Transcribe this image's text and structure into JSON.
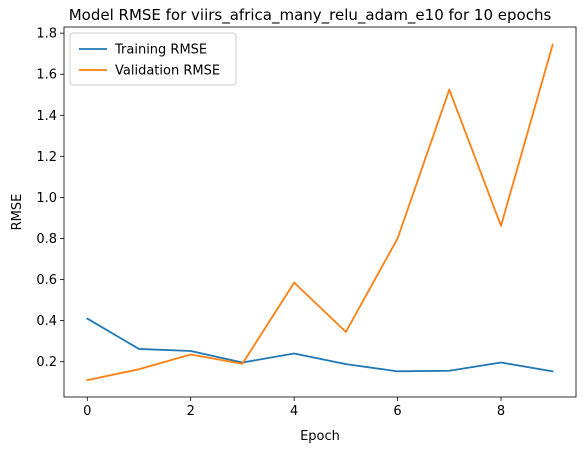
{
  "chart_data": {
    "type": "line",
    "title": "Model RMSE for viirs_africa_many_relu_adam_e10 for 10 epochs",
    "xlabel": "Epoch",
    "ylabel": "RMSE",
    "x": [
      0,
      1,
      2,
      3,
      4,
      5,
      6,
      7,
      8,
      9
    ],
    "xlim": [
      -0.45,
      9.45
    ],
    "ylim": [
      0.028,
      1.83
    ],
    "xticks": [
      0,
      2,
      4,
      6,
      8
    ],
    "xtick_labels": [
      "0",
      "2",
      "4",
      "6",
      "8"
    ],
    "yticks": [
      0.2,
      0.4,
      0.6,
      0.8,
      1.0,
      1.2,
      1.4,
      1.6,
      1.8
    ],
    "ytick_labels": [
      "0.2",
      "0.4",
      "0.6",
      "0.8",
      "1.0",
      "1.2",
      "1.4",
      "1.6",
      "1.8"
    ],
    "grid": false,
    "legend_position": "top-left",
    "series": [
      {
        "name": "Training RMSE",
        "color": "#1f77b4",
        "values": [
          0.41,
          0.262,
          0.252,
          0.196,
          0.24,
          0.188,
          0.153,
          0.156,
          0.196,
          0.153
        ]
      },
      {
        "name": "Validation RMSE",
        "color": "#ff7f0e",
        "values": [
          0.11,
          0.163,
          0.235,
          0.19,
          0.585,
          0.345,
          0.8,
          1.525,
          0.862,
          1.745
        ]
      }
    ]
  }
}
